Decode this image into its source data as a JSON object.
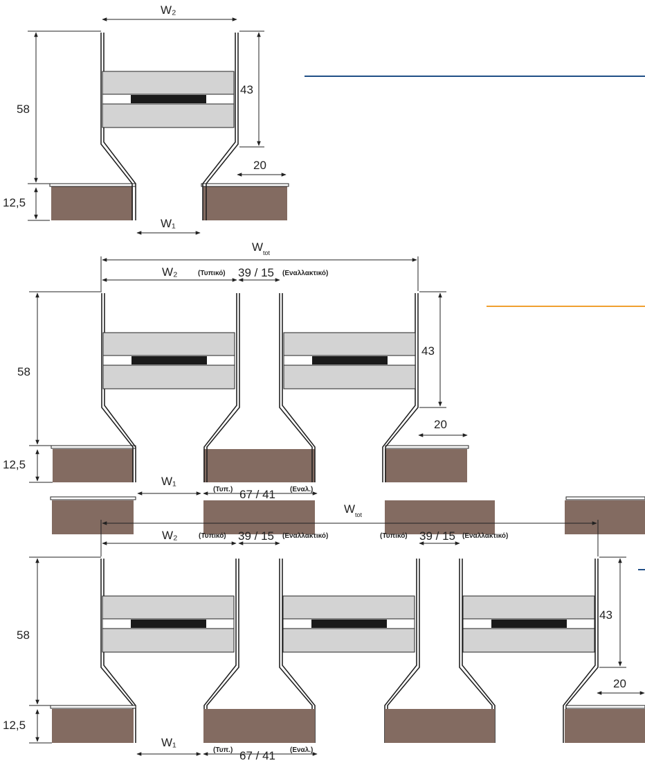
{
  "labels": {
    "w2": "W₂",
    "w1": "W₁",
    "wtot_main": "W",
    "wtot_sub": "tot",
    "h58": "58",
    "h43": "43",
    "h125": "12,5",
    "d20": "20",
    "gap": "39 / 15",
    "typical": "(Τυπικό)",
    "alternative": "(Εναλλακτικό)",
    "bottom_gap": "67 / 41",
    "typ_abbr": "(Τυπ.)",
    "alt_abbr": "(Εναλ.)"
  },
  "colors": {
    "panel": "#d3d3d3",
    "strip": "#1a1a1a",
    "base": "#836b61",
    "line": "#222222",
    "accent_blue": "#1f4e86",
    "accent_orange": "#f0a030"
  }
}
